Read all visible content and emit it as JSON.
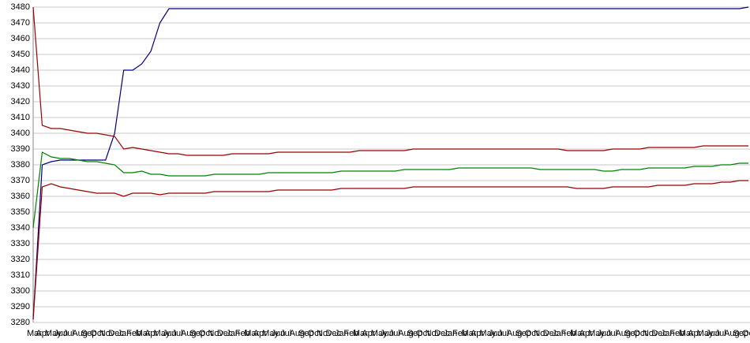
{
  "chart_data": {
    "type": "line",
    "categories": [
      "Mar",
      "Apr",
      "May",
      "Jun",
      "Jul",
      "Aug",
      "Sep",
      "Oct",
      "Nov",
      "Dec",
      "Jan",
      "Feb",
      "Mar",
      "Apr",
      "May",
      "Jun",
      "Jul",
      "Aug",
      "Sep",
      "Oct",
      "Nov",
      "Dec",
      "Jan",
      "Feb",
      "Mar",
      "Apr",
      "May",
      "Jun",
      "Jul",
      "Aug",
      "Sep",
      "Oct",
      "Nov",
      "Dec",
      "Jan",
      "Feb",
      "Mar",
      "Apr",
      "May",
      "Jun",
      "Jul",
      "Aug",
      "Sep",
      "Oct",
      "Nov",
      "Dec",
      "Jan",
      "Feb",
      "Mar",
      "Apr",
      "May",
      "Jun",
      "Jul",
      "Aug",
      "Sep",
      "Oct",
      "Nov",
      "Dec",
      "Jan",
      "Feb",
      "Mar",
      "Apr",
      "May",
      "Jun",
      "Jul",
      "Aug",
      "Sep",
      "Oct",
      "Nov",
      "Dec",
      "Jan",
      "Feb",
      "Mar",
      "Apr",
      "May",
      "Jun",
      "Jul",
      "Aug",
      "Sep",
      "Oct"
    ],
    "series": [
      {
        "color": "#000080",
        "values": [
          3282,
          3380,
          3382,
          3383,
          3383,
          3383,
          3383,
          3383,
          3383,
          3400,
          3440,
          3440,
          3444,
          3452,
          3470,
          3479,
          3479,
          3479,
          3479,
          3479,
          3479,
          3479,
          3479,
          3479,
          3479,
          3479,
          3479,
          3479,
          3479,
          3479,
          3479,
          3479,
          3479,
          3479,
          3479,
          3479,
          3479,
          3479,
          3479,
          3479,
          3479,
          3479,
          3479,
          3479,
          3479,
          3479,
          3479,
          3479,
          3479,
          3479,
          3479,
          3479,
          3479,
          3479,
          3479,
          3479,
          3479,
          3479,
          3479,
          3479,
          3479,
          3479,
          3479,
          3479,
          3479,
          3479,
          3479,
          3479,
          3479,
          3479,
          3479,
          3479,
          3479,
          3479,
          3479,
          3479,
          3479,
          3479,
          3479,
          3480
        ]
      },
      {
        "color": "#990000",
        "values": [
          3480,
          3405,
          3403,
          3403,
          3402,
          3401,
          3400,
          3400,
          3399,
          3398,
          3390,
          3391,
          3390,
          3389,
          3388,
          3387,
          3387,
          3386,
          3386,
          3386,
          3386,
          3386,
          3387,
          3387,
          3387,
          3387,
          3387,
          3388,
          3388,
          3388,
          3388,
          3388,
          3388,
          3388,
          3388,
          3388,
          3389,
          3389,
          3389,
          3389,
          3389,
          3389,
          3390,
          3390,
          3390,
          3390,
          3390,
          3390,
          3390,
          3390,
          3390,
          3390,
          3390,
          3390,
          3390,
          3390,
          3390,
          3390,
          3390,
          3389,
          3389,
          3389,
          3389,
          3389,
          3390,
          3390,
          3390,
          3390,
          3391,
          3391,
          3391,
          3391,
          3391,
          3391,
          3392,
          3392,
          3392,
          3392,
          3392,
          3392
        ]
      },
      {
        "color": "#008000",
        "values": [
          3340,
          3388,
          3385,
          3384,
          3384,
          3383,
          3382,
          3382,
          3381,
          3380,
          3375,
          3375,
          3376,
          3374,
          3374,
          3373,
          3373,
          3373,
          3373,
          3373,
          3374,
          3374,
          3374,
          3374,
          3374,
          3374,
          3375,
          3375,
          3375,
          3375,
          3375,
          3375,
          3375,
          3375,
          3376,
          3376,
          3376,
          3376,
          3376,
          3376,
          3376,
          3377,
          3377,
          3377,
          3377,
          3377,
          3377,
          3378,
          3378,
          3378,
          3378,
          3378,
          3378,
          3378,
          3378,
          3378,
          3377,
          3377,
          3377,
          3377,
          3377,
          3377,
          3377,
          3376,
          3376,
          3377,
          3377,
          3377,
          3378,
          3378,
          3378,
          3378,
          3378,
          3379,
          3379,
          3379,
          3380,
          3380,
          3381,
          3381
        ]
      },
      {
        "color": "#990000",
        "values": [
          3282,
          3366,
          3368,
          3366,
          3365,
          3364,
          3363,
          3362,
          3362,
          3362,
          3360,
          3362,
          3362,
          3362,
          3361,
          3362,
          3362,
          3362,
          3362,
          3362,
          3363,
          3363,
          3363,
          3363,
          3363,
          3363,
          3363,
          3364,
          3364,
          3364,
          3364,
          3364,
          3364,
          3364,
          3365,
          3365,
          3365,
          3365,
          3365,
          3365,
          3365,
          3365,
          3366,
          3366,
          3366,
          3366,
          3366,
          3366,
          3366,
          3366,
          3366,
          3366,
          3366,
          3366,
          3366,
          3366,
          3366,
          3366,
          3366,
          3366,
          3365,
          3365,
          3365,
          3365,
          3366,
          3366,
          3366,
          3366,
          3366,
          3367,
          3367,
          3367,
          3367,
          3368,
          3368,
          3368,
          3369,
          3369,
          3370,
          3370
        ]
      }
    ],
    "ylim": [
      3280,
      3480
    ],
    "yticks": [
      3280,
      3290,
      3300,
      3310,
      3320,
      3330,
      3340,
      3350,
      3360,
      3370,
      3380,
      3390,
      3400,
      3410,
      3420,
      3430,
      3440,
      3450,
      3460,
      3470,
      3480
    ],
    "grid": true
  }
}
